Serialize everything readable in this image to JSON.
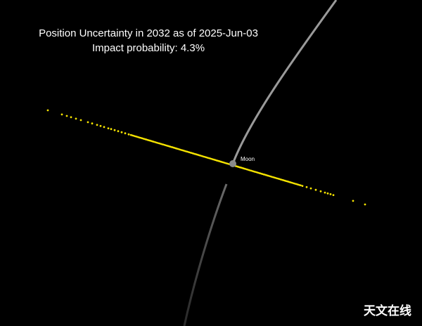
{
  "title": "Position Uncertainty in 2032 as of 2025-Jun-03",
  "subtitle": "Impact probability: 4.3%",
  "moon_label": "Moon",
  "watermark": "天文在线"
}
